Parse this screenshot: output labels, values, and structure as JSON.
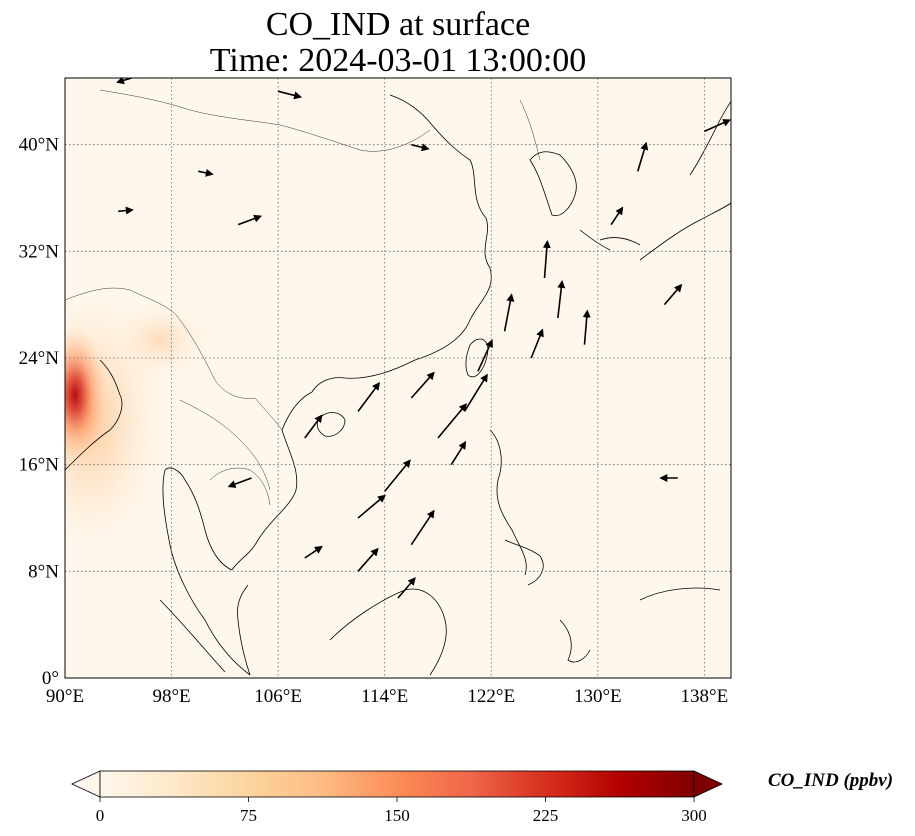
{
  "title": {
    "line1": "CO_IND at surface",
    "line2": "Time: 2024-03-01 13:00:00"
  },
  "axes": {
    "x_ticks": [
      "90°E",
      "98°E",
      "106°E",
      "114°E",
      "122°E",
      "130°E",
      "138°E"
    ],
    "x_tick_values": [
      90,
      98,
      106,
      114,
      122,
      130,
      138
    ],
    "y_ticks": [
      "40°N",
      "32°N",
      "24°N",
      "16°N",
      "8°N",
      "0°"
    ],
    "y_tick_values": [
      40,
      32,
      24,
      16,
      8,
      0
    ],
    "lon_range": [
      90,
      140
    ],
    "lat_range": [
      0,
      45
    ],
    "gridlines": "dotted"
  },
  "colorbar": {
    "label": "CO_IND (ppbv)",
    "ticks": [
      "0",
      "75",
      "150",
      "225",
      "300"
    ],
    "tick_values": [
      0,
      75,
      150,
      225,
      300
    ],
    "range": [
      0,
      300
    ],
    "extend": "both",
    "colormap": "OrRd",
    "colors": [
      "#fff7ec",
      "#fee8c8",
      "#fdd49e",
      "#fdbb84",
      "#fc8d59",
      "#ef6548",
      "#d7301f",
      "#b30000",
      "#7f0000"
    ]
  },
  "wind_vectors": [
    {
      "lon": 112,
      "lat": 20,
      "u": 1.5,
      "v": 2.0
    },
    {
      "lon": 116,
      "lat": 21,
      "u": 1.6,
      "v": 1.8
    },
    {
      "lon": 118,
      "lat": 18,
      "u": 2.0,
      "v": 2.4
    },
    {
      "lon": 120,
      "lat": 20,
      "u": 1.6,
      "v": 2.6
    },
    {
      "lon": 114,
      "lat": 14,
      "u": 1.8,
      "v": 2.2
    },
    {
      "lon": 112,
      "lat": 12,
      "u": 1.9,
      "v": 1.6
    },
    {
      "lon": 116,
      "lat": 10,
      "u": 1.6,
      "v": 2.4
    },
    {
      "lon": 112,
      "lat": 8,
      "u": 1.4,
      "v": 1.6
    },
    {
      "lon": 126,
      "lat": 30,
      "u": 0.2,
      "v": 2.6
    },
    {
      "lon": 127,
      "lat": 27,
      "u": 0.3,
      "v": 2.6
    },
    {
      "lon": 125,
      "lat": 24,
      "u": 0.8,
      "v": 2.0
    },
    {
      "lon": 129,
      "lat": 25,
      "u": 0.2,
      "v": 2.4
    },
    {
      "lon": 135,
      "lat": 28,
      "u": 1.2,
      "v": 1.4
    },
    {
      "lon": 133,
      "lat": 38,
      "u": 0.6,
      "v": 2.0
    },
    {
      "lon": 138,
      "lat": 41,
      "u": 1.8,
      "v": 0.8
    },
    {
      "lon": 103,
      "lat": 34,
      "u": 1.6,
      "v": 0.6
    },
    {
      "lon": 104,
      "lat": 15,
      "u": -1.6,
      "v": -0.6
    },
    {
      "lon": 108,
      "lat": 18,
      "u": 1.2,
      "v": 1.6
    },
    {
      "lon": 121,
      "lat": 23,
      "u": 1.0,
      "v": 2.2
    },
    {
      "lon": 123,
      "lat": 26,
      "u": 0.5,
      "v": 2.6
    },
    {
      "lon": 119,
      "lat": 16,
      "u": 1.0,
      "v": 1.6
    },
    {
      "lon": 115,
      "lat": 6,
      "u": 1.2,
      "v": 1.4
    },
    {
      "lon": 108,
      "lat": 9,
      "u": 1.2,
      "v": 0.8
    },
    {
      "lon": 131,
      "lat": 34,
      "u": 0.8,
      "v": 1.2
    },
    {
      "lon": 136,
      "lat": 15,
      "u": -1.2,
      "v": 0.0
    },
    {
      "lon": 94,
      "lat": 35,
      "u": 1.0,
      "v": 0.1
    },
    {
      "lon": 95,
      "lat": 45,
      "u": -1.0,
      "v": -0.3
    },
    {
      "lon": 106,
      "lat": 44,
      "u": 1.6,
      "v": -0.4
    },
    {
      "lon": 116,
      "lat": 40,
      "u": 1.2,
      "v": -0.3
    },
    {
      "lon": 100,
      "lat": 38,
      "u": 1.0,
      "v": -0.2
    }
  ]
}
